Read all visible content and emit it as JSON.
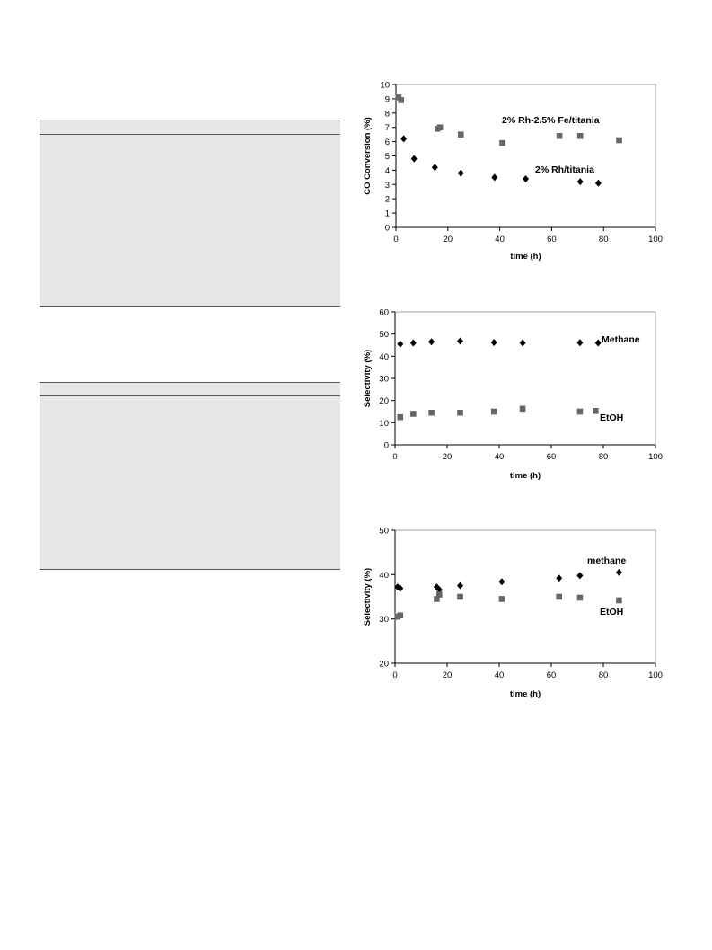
{
  "chart_data": [
    {
      "type": "scatter",
      "xlabel": "time (h)",
      "ylabel": "CO Conversion (%)",
      "xlim": [
        0,
        100
      ],
      "ylim": [
        0,
        10
      ],
      "xticks": [
        0,
        20,
        40,
        60,
        80,
        100
      ],
      "yticks": [
        0,
        1,
        2,
        3,
        4,
        5,
        6,
        7,
        8,
        9,
        10
      ],
      "grid": false,
      "series": [
        {
          "name": "2% Rh-2.5% Fe/titania",
          "marker": "square",
          "color": "#666666",
          "points": [
            [
              1,
              9.1
            ],
            [
              2,
              8.9
            ],
            [
              16,
              6.9
            ],
            [
              17,
              7.0
            ],
            [
              25,
              6.5
            ],
            [
              41,
              5.9
            ],
            [
              63,
              6.4
            ],
            [
              71,
              6.4
            ],
            [
              86,
              6.1
            ]
          ]
        },
        {
          "name": "2% Rh/titania",
          "marker": "diamond",
          "color": "#000000",
          "points": [
            [
              3,
              6.2
            ],
            [
              7,
              4.8
            ],
            [
              15,
              4.2
            ],
            [
              25,
              3.8
            ],
            [
              38,
              3.5
            ],
            [
              50,
              3.4
            ],
            [
              71,
              3.2
            ],
            [
              78,
              3.1
            ]
          ]
        }
      ]
    },
    {
      "type": "scatter",
      "xlabel": "time (h)",
      "ylabel": "Selectivity (%)",
      "xlim": [
        0,
        100
      ],
      "ylim": [
        0,
        60
      ],
      "xticks": [
        0,
        20,
        40,
        60,
        80,
        100
      ],
      "yticks": [
        0,
        10,
        20,
        30,
        40,
        50,
        60
      ],
      "grid": false,
      "series": [
        {
          "name": "Methane",
          "marker": "diamond",
          "color": "#000000",
          "points": [
            [
              2,
              45.5
            ],
            [
              7,
              46
            ],
            [
              14,
              46.5
            ],
            [
              25,
              46.8
            ],
            [
              38,
              46.2
            ],
            [
              49,
              46
            ],
            [
              71,
              46.1
            ],
            [
              78,
              46
            ]
          ]
        },
        {
          "name": "EtOH",
          "marker": "square",
          "color": "#666666",
          "points": [
            [
              2,
              12.5
            ],
            [
              7,
              14
            ],
            [
              14,
              14.5
            ],
            [
              25,
              14.5
            ],
            [
              38,
              15
            ],
            [
              49,
              16.3
            ],
            [
              71,
              15
            ],
            [
              77,
              15.3
            ]
          ]
        }
      ]
    },
    {
      "type": "scatter",
      "xlabel": "time (h)",
      "ylabel": "Selectivity (%)",
      "xlim": [
        0,
        100
      ],
      "ylim": [
        20,
        50
      ],
      "xticks": [
        0,
        20,
        40,
        60,
        80,
        100
      ],
      "yticks": [
        20,
        30,
        40,
        50
      ],
      "grid": false,
      "series": [
        {
          "name": "methane",
          "marker": "diamond",
          "color": "#000000",
          "points": [
            [
              1,
              37.2
            ],
            [
              2,
              36.9
            ],
            [
              16,
              37.2
            ],
            [
              17,
              36.6
            ],
            [
              25,
              37.5
            ],
            [
              41,
              38.4
            ],
            [
              63,
              39.2
            ],
            [
              71,
              39.8
            ],
            [
              86,
              40.5
            ]
          ]
        },
        {
          "name": "EtOH",
          "marker": "square",
          "color": "#666666",
          "points": [
            [
              1,
              30.5
            ],
            [
              2,
              30.8
            ],
            [
              16,
              34.5
            ],
            [
              17,
              35.5
            ],
            [
              25,
              35
            ],
            [
              41,
              34.5
            ],
            [
              63,
              35
            ],
            [
              71,
              34.8
            ],
            [
              86,
              34.2
            ]
          ]
        }
      ]
    }
  ]
}
